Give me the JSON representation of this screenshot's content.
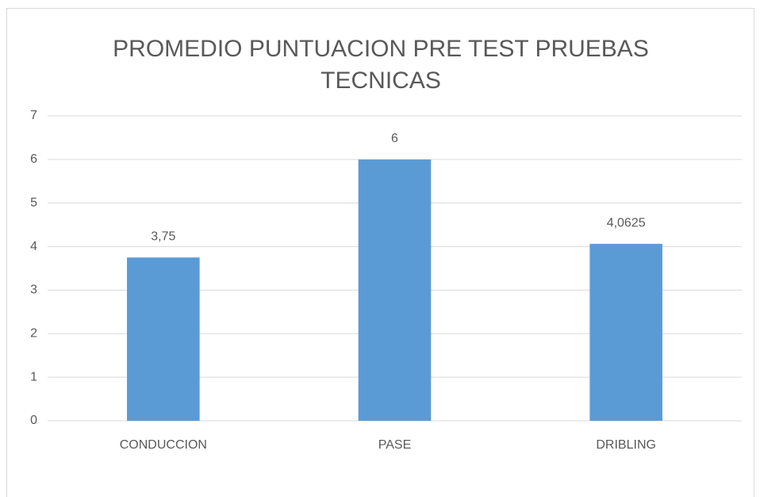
{
  "chart_data": {
    "type": "bar",
    "title": "PROMEDIO PUNTUACION PRE TEST PRUEBAS TECNICAS",
    "categories": [
      "CONDUCCION",
      "PASE",
      "DRIBLING"
    ],
    "values": [
      3.75,
      6,
      4.0625
    ],
    "value_labels": [
      "3,75",
      "6",
      "4,0625"
    ],
    "color": "#5b9bd5",
    "ylim": [
      0,
      7
    ],
    "yticks": [
      0,
      1,
      2,
      3,
      4,
      5,
      6,
      7
    ],
    "grid": true
  }
}
